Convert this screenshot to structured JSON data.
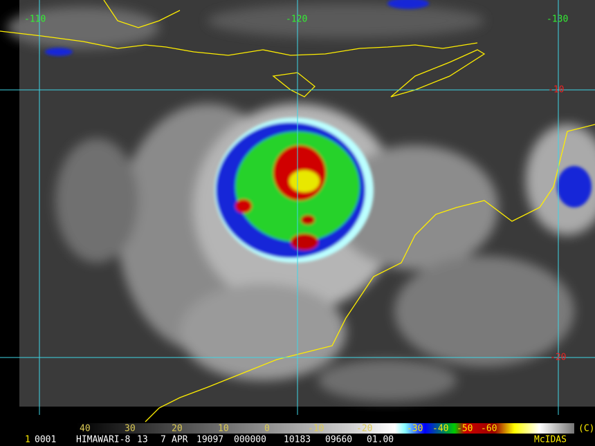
{
  "grid_labels": {
    "lon": [
      "-110",
      "-120",
      "-130"
    ],
    "lat": [
      "-10",
      "-20"
    ]
  },
  "colorbar": {
    "labels": [
      "40",
      "30",
      "20",
      "10",
      "0",
      "-10",
      "-20",
      "-30",
      "-40",
      "-50",
      "-60"
    ],
    "copyright": "(C)"
  },
  "footer": {
    "fields": [
      "1",
      "0001",
      "HIMAWARI-8",
      "13",
      "7",
      "APR",
      "19097",
      "000000",
      "10183",
      "09660",
      "01.00"
    ],
    "brand": "McIDAS"
  }
}
